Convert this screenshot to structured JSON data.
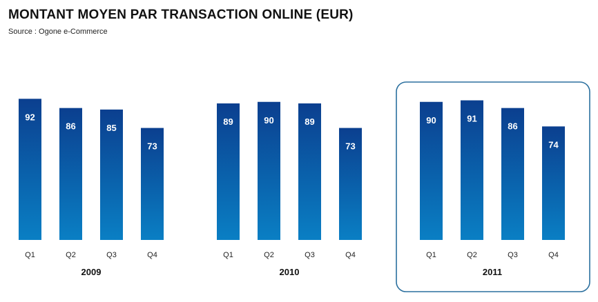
{
  "title": "MONTANT MOYEN PAR TRANSACTION ONLINE (EUR)",
  "source": "Source : Ogone e-Commerce",
  "colors": {
    "bar_top": "#0b3f8f",
    "bar_bottom": "#0a7fc4",
    "highlight_border": "#2a6f9e",
    "baseline": "#333333"
  },
  "chart_data": {
    "type": "bar",
    "title": "MONTANT MOYEN PAR TRANSACTION ONLINE (EUR)",
    "subtitle": "Source : Ogone e-Commerce",
    "xlabel": "",
    "ylabel": "",
    "ylim": [
      0,
      100
    ],
    "grid": false,
    "highlighted_group": "2011",
    "groups": [
      {
        "label": "2009",
        "categories": [
          "Q1",
          "Q2",
          "Q3",
          "Q4"
        ],
        "values": [
          92,
          86,
          85,
          73
        ]
      },
      {
        "label": "2010",
        "categories": [
          "Q1",
          "Q2",
          "Q3",
          "Q4"
        ],
        "values": [
          89,
          90,
          89,
          73
        ]
      },
      {
        "label": "2011",
        "categories": [
          "Q1",
          "Q2",
          "Q3",
          "Q4"
        ],
        "values": [
          90,
          91,
          86,
          74
        ]
      }
    ]
  }
}
